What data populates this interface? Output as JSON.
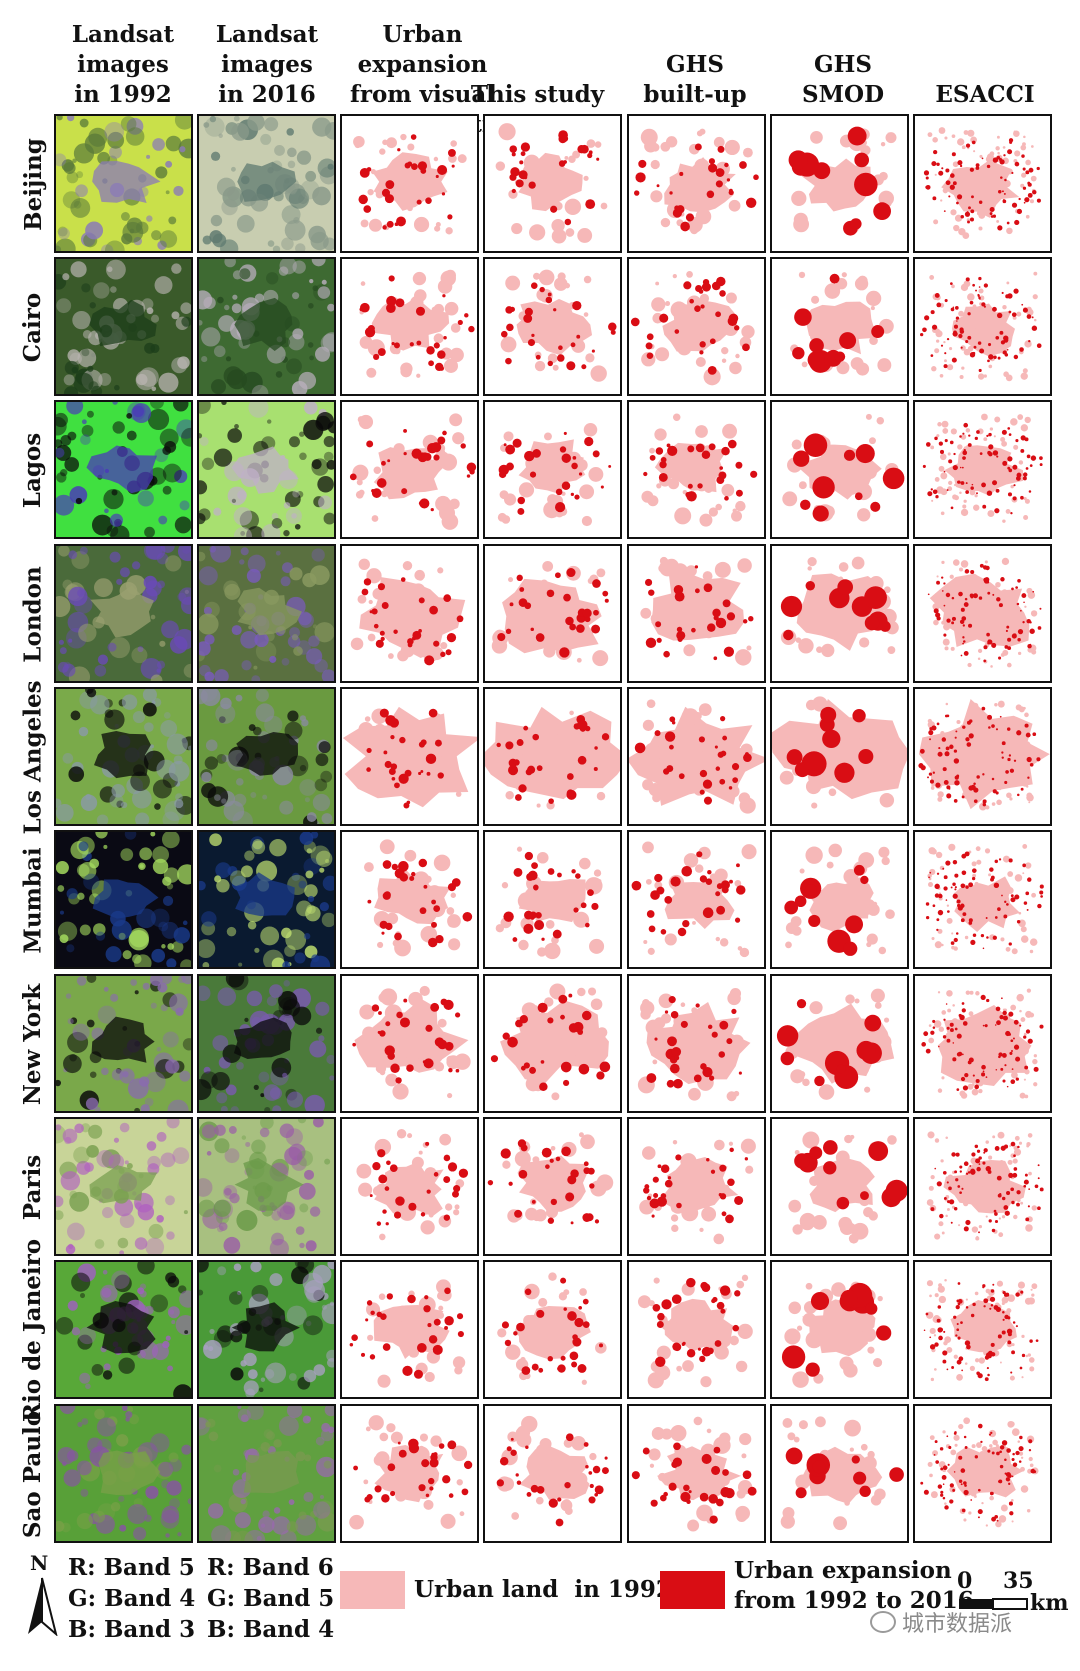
{
  "columns": [
    {
      "key": "l1992",
      "label": "Landsat\nimages\nin 1992"
    },
    {
      "key": "l2016",
      "label": "Landsat\nimages\nin 2016"
    },
    {
      "key": "visual",
      "label": "Urban expansion\nfrom visual\ninterpretation"
    },
    {
      "key": "study",
      "label": "This study"
    },
    {
      "key": "ghsbu",
      "label": "GHS\nbuilt-up"
    },
    {
      "key": "ghssmod",
      "label": "GHS\nSMOD"
    },
    {
      "key": "esacci",
      "label": "ESACCI"
    }
  ],
  "rows": [
    {
      "city": "Beijing"
    },
    {
      "city": "Cairo"
    },
    {
      "city": "Lagos"
    },
    {
      "city": "London"
    },
    {
      "city": "Los Angeles"
    },
    {
      "city": "Mumbai"
    },
    {
      "city": "New York"
    },
    {
      "city": "Paris"
    },
    {
      "city": "Rio de Janeiro"
    },
    {
      "city": "Sao Paulo"
    }
  ],
  "legend": {
    "north": "N",
    "bands_1992": [
      "R: Band 5",
      "G: Band 4",
      "B: Band 3"
    ],
    "bands_2016": [
      "R: Band 6",
      "G: Band 5",
      "B: Band 4"
    ],
    "urban_1992": "Urban land  in 1992",
    "expansion": "Urban expansion\nfrom 1992 to 2016",
    "scale_zero": "0",
    "scale_max": "35",
    "scale_unit": "km"
  },
  "watermark": "城市数据派",
  "colors": {
    "urban_1992": "#f6b8b8",
    "expansion": "#d90d14",
    "frame": "#111111"
  },
  "row_themes": [
    {
      "l1992": [
        "#c9e04a",
        "#5a7a3a",
        "#8a7ab8"
      ],
      "l2016": [
        "#c8cdb0",
        "#8a9a8a",
        "#5f7a70"
      ]
    },
    {
      "l1992": [
        "#3a5a2a",
        "#b8b4b0",
        "#1c3d1a"
      ],
      "l2016": [
        "#3e6a32",
        "#b8aebc",
        "#264a20"
      ]
    },
    {
      "l1992": [
        "#40e040",
        "#0a0a0a",
        "#4a3ab8"
      ],
      "l2016": [
        "#a8e070",
        "#0a0a0a",
        "#c0b0c8"
      ]
    },
    {
      "l1992": [
        "#4a6a3a",
        "#6a4ab8",
        "#9aa070"
      ],
      "l2016": [
        "#5a7040",
        "#7a5ac0",
        "#8a9a60"
      ]
    },
    {
      "l1992": [
        "#7aaa4a",
        "#8a9aa8",
        "#0a0a0a"
      ],
      "l2016": [
        "#6a9a40",
        "#8a8aa0",
        "#0a0a0a"
      ]
    },
    {
      "l1992": [
        "#0a0a14",
        "#a8e060",
        "#1a3a8a"
      ],
      "l2016": [
        "#0a1a30",
        "#c0e070",
        "#1a3a8a"
      ]
    },
    {
      "l1992": [
        "#7aa84a",
        "#8a6ab0",
        "#0a0a0a"
      ],
      "l2016": [
        "#4a7a3a",
        "#7a5ab0",
        "#0a0a0a"
      ]
    },
    {
      "l1992": [
        "#c8d498",
        "#b060c0",
        "#7aa050"
      ],
      "l2016": [
        "#a8c080",
        "#9a5aa8",
        "#6a9a48"
      ]
    },
    {
      "l1992": [
        "#58a838",
        "#a060c0",
        "#0a0a0a"
      ],
      "l2016": [
        "#4a9a38",
        "#a8a0c0",
        "#0a0a0a"
      ]
    },
    {
      "l1992": [
        "#58a038",
        "#8a50a8",
        "#7aa048"
      ],
      "l2016": [
        "#60a040",
        "#9a68b0",
        "#7a9a50"
      ]
    }
  ]
}
